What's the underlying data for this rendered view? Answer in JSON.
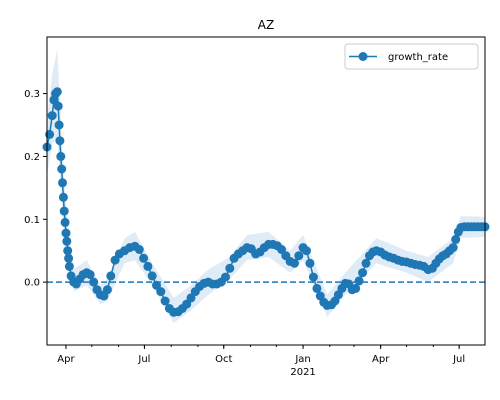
{
  "chart_data": {
    "type": "line",
    "title": "AZ",
    "xlabel": "",
    "ylabel": "",
    "x_range": [
      "2020-03-10",
      "2021-07-31"
    ],
    "ylim": [
      -0.1,
      0.39
    ],
    "grid": false,
    "x_ticks": [
      {
        "date": "2020-04-01",
        "label": "Apr"
      },
      {
        "date": "2020-07-01",
        "label": "Jul"
      },
      {
        "date": "2020-10-01",
        "label": "Oct"
      },
      {
        "date": "2021-01-01",
        "label": "Jan",
        "sublabel": "2021"
      },
      {
        "date": "2021-04-01",
        "label": "Apr"
      },
      {
        "date": "2021-07-01",
        "label": "Jul"
      }
    ],
    "y_ticks": [
      0.0,
      0.1,
      0.2,
      0.3
    ],
    "y_tick_labels": [
      "0.0",
      "0.1",
      "0.2",
      "0.3"
    ],
    "reference_line": {
      "y": 0.0,
      "style": "dashed"
    },
    "legend": {
      "position": "top-right",
      "entries": [
        "growth_rate"
      ]
    },
    "colors": {
      "series": "#1f77b4",
      "band": "#dfebf6"
    },
    "series": [
      {
        "name": "growth_rate",
        "points": [
          [
            "2020-03-10",
            0.215
          ],
          [
            "2020-03-13",
            0.235
          ],
          [
            "2020-03-16",
            0.265
          ],
          [
            "2020-03-18",
            0.29
          ],
          [
            "2020-03-20",
            0.3
          ],
          [
            "2020-03-22",
            0.303
          ],
          [
            "2020-03-23",
            0.28
          ],
          [
            "2020-03-24",
            0.25
          ],
          [
            "2020-03-25",
            0.225
          ],
          [
            "2020-03-26",
            0.2
          ],
          [
            "2020-03-27",
            0.18
          ],
          [
            "2020-03-28",
            0.158
          ],
          [
            "2020-03-29",
            0.135
          ],
          [
            "2020-03-30",
            0.113
          ],
          [
            "2020-03-31",
            0.095
          ],
          [
            "2020-04-01",
            0.078
          ],
          [
            "2020-04-02",
            0.065
          ],
          [
            "2020-04-03",
            0.05
          ],
          [
            "2020-04-04",
            0.038
          ],
          [
            "2020-04-05",
            0.025
          ],
          [
            "2020-04-07",
            0.01
          ],
          [
            "2020-04-10",
            0.0
          ],
          [
            "2020-04-13",
            -0.003
          ],
          [
            "2020-04-17",
            0.005
          ],
          [
            "2020-04-21",
            0.012
          ],
          [
            "2020-04-25",
            0.015
          ],
          [
            "2020-04-29",
            0.012
          ],
          [
            "2020-05-03",
            0.0
          ],
          [
            "2020-05-07",
            -0.012
          ],
          [
            "2020-05-11",
            -0.02
          ],
          [
            "2020-05-15",
            -0.022
          ],
          [
            "2020-05-19",
            -0.012
          ],
          [
            "2020-05-23",
            0.01
          ],
          [
            "2020-05-28",
            0.035
          ],
          [
            "2020-06-02",
            0.045
          ],
          [
            "2020-06-08",
            0.05
          ],
          [
            "2020-06-14",
            0.055
          ],
          [
            "2020-06-20",
            0.057
          ],
          [
            "2020-06-25",
            0.052
          ],
          [
            "2020-06-30",
            0.038
          ],
          [
            "2020-07-05",
            0.025
          ],
          [
            "2020-07-10",
            0.01
          ],
          [
            "2020-07-15",
            -0.005
          ],
          [
            "2020-07-20",
            -0.015
          ],
          [
            "2020-07-25",
            -0.03
          ],
          [
            "2020-07-30",
            -0.042
          ],
          [
            "2020-08-04",
            -0.048
          ],
          [
            "2020-08-09",
            -0.047
          ],
          [
            "2020-08-14",
            -0.042
          ],
          [
            "2020-08-19",
            -0.035
          ],
          [
            "2020-08-24",
            -0.025
          ],
          [
            "2020-08-29",
            -0.015
          ],
          [
            "2020-09-03",
            -0.007
          ],
          [
            "2020-09-08",
            -0.002
          ],
          [
            "2020-09-13",
            0.0
          ],
          [
            "2020-09-18",
            -0.003
          ],
          [
            "2020-09-23",
            -0.003
          ],
          [
            "2020-09-28",
            0.0
          ],
          [
            "2020-10-03",
            0.008
          ],
          [
            "2020-10-08",
            0.022
          ],
          [
            "2020-10-13",
            0.038
          ],
          [
            "2020-10-18",
            0.045
          ],
          [
            "2020-10-23",
            0.05
          ],
          [
            "2020-10-28",
            0.055
          ],
          [
            "2020-11-02",
            0.053
          ],
          [
            "2020-11-07",
            0.045
          ],
          [
            "2020-11-12",
            0.048
          ],
          [
            "2020-11-17",
            0.055
          ],
          [
            "2020-11-22",
            0.06
          ],
          [
            "2020-11-27",
            0.06
          ],
          [
            "2020-12-02",
            0.058
          ],
          [
            "2020-12-07",
            0.052
          ],
          [
            "2020-12-12",
            0.042
          ],
          [
            "2020-12-17",
            0.033
          ],
          [
            "2020-12-22",
            0.03
          ],
          [
            "2020-12-27",
            0.042
          ],
          [
            "2021-01-01",
            0.055
          ],
          [
            "2021-01-05",
            0.05
          ],
          [
            "2021-01-09",
            0.03
          ],
          [
            "2021-01-13",
            0.008
          ],
          [
            "2021-01-17",
            -0.01
          ],
          [
            "2021-01-21",
            -0.022
          ],
          [
            "2021-01-25",
            -0.032
          ],
          [
            "2021-01-29",
            -0.037
          ],
          [
            "2021-02-03",
            -0.036
          ],
          [
            "2021-02-07",
            -0.03
          ],
          [
            "2021-02-11",
            -0.02
          ],
          [
            "2021-02-15",
            -0.01
          ],
          [
            "2021-02-19",
            -0.002
          ],
          [
            "2021-02-23",
            -0.003
          ],
          [
            "2021-02-27",
            -0.012
          ],
          [
            "2021-03-03",
            -0.01
          ],
          [
            "2021-03-07",
            0.002
          ],
          [
            "2021-03-11",
            0.015
          ],
          [
            "2021-03-15",
            0.03
          ],
          [
            "2021-03-19",
            0.042
          ],
          [
            "2021-03-23",
            0.048
          ],
          [
            "2021-03-27",
            0.05
          ],
          [
            "2021-04-01",
            0.048
          ],
          [
            "2021-04-06",
            0.043
          ],
          [
            "2021-04-11",
            0.04
          ],
          [
            "2021-04-16",
            0.038
          ],
          [
            "2021-04-21",
            0.035
          ],
          [
            "2021-04-26",
            0.033
          ],
          [
            "2021-05-01",
            0.032
          ],
          [
            "2021-05-06",
            0.03
          ],
          [
            "2021-05-11",
            0.028
          ],
          [
            "2021-05-16",
            0.027
          ],
          [
            "2021-05-21",
            0.025
          ],
          [
            "2021-05-26",
            0.02
          ],
          [
            "2021-05-31",
            0.022
          ],
          [
            "2021-06-04",
            0.03
          ],
          [
            "2021-06-08",
            0.037
          ],
          [
            "2021-06-12",
            0.042
          ],
          [
            "2021-06-16",
            0.045
          ],
          [
            "2021-06-20",
            0.05
          ],
          [
            "2021-06-24",
            0.055
          ],
          [
            "2021-06-27",
            0.068
          ],
          [
            "2021-06-30",
            0.08
          ],
          [
            "2021-07-03",
            0.087
          ],
          [
            "2021-07-07",
            0.088
          ],
          [
            "2021-07-11",
            0.088
          ],
          [
            "2021-07-15",
            0.088
          ],
          [
            "2021-07-19",
            0.088
          ],
          [
            "2021-07-23",
            0.088
          ],
          [
            "2021-07-27",
            0.088
          ],
          [
            "2021-07-31",
            0.088
          ]
        ],
        "band": [
          [
            "2020-03-10",
            0.17,
            0.26
          ],
          [
            "2020-03-16",
            0.22,
            0.33
          ],
          [
            "2020-03-22",
            0.23,
            0.37
          ],
          [
            "2020-03-26",
            0.15,
            0.26
          ],
          [
            "2020-03-30",
            0.07,
            0.16
          ],
          [
            "2020-04-03",
            0.02,
            0.09
          ],
          [
            "2020-04-10",
            -0.015,
            0.02
          ],
          [
            "2020-04-25",
            -0.005,
            0.035
          ],
          [
            "2020-05-11",
            -0.035,
            -0.005
          ],
          [
            "2020-05-19",
            -0.03,
            0.005
          ],
          [
            "2020-06-08",
            0.03,
            0.07
          ],
          [
            "2020-06-20",
            0.035,
            0.08
          ],
          [
            "2020-07-10",
            -0.005,
            0.03
          ],
          [
            "2020-08-04",
            -0.065,
            -0.025
          ],
          [
            "2020-08-24",
            -0.045,
            -0.005
          ],
          [
            "2020-09-13",
            -0.02,
            0.02
          ],
          [
            "2020-10-08",
            0.005,
            0.04
          ],
          [
            "2020-10-28",
            0.035,
            0.075
          ],
          [
            "2020-11-22",
            0.04,
            0.08
          ],
          [
            "2020-12-17",
            0.015,
            0.05
          ],
          [
            "2021-01-01",
            0.035,
            0.075
          ],
          [
            "2021-01-29",
            -0.055,
            -0.02
          ],
          [
            "2021-02-19",
            -0.02,
            0.015
          ],
          [
            "2021-03-27",
            0.03,
            0.07
          ],
          [
            "2021-05-01",
            0.015,
            0.05
          ],
          [
            "2021-05-26",
            0.0,
            0.04
          ],
          [
            "2021-06-24",
            0.03,
            0.07
          ],
          [
            "2021-07-03",
            0.07,
            0.105
          ],
          [
            "2021-07-31",
            0.072,
            0.104
          ]
        ]
      }
    ]
  }
}
